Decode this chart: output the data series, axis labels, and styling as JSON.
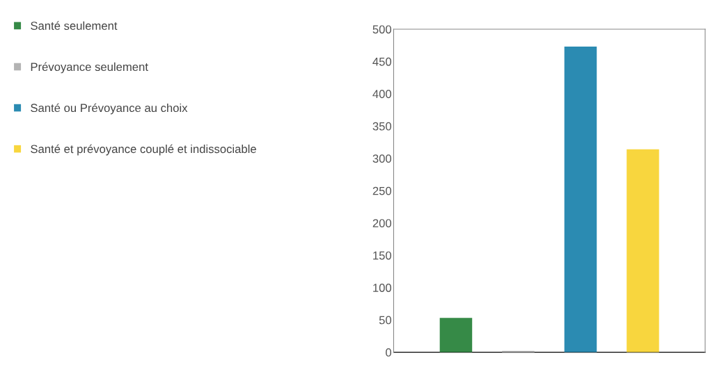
{
  "chart_data": {
    "type": "bar",
    "categories": [
      null,
      null,
      null,
      null
    ],
    "series": [
      {
        "name": "Santé seulement",
        "color": "#368a47",
        "values": [
          53,
          null,
          null,
          null
        ]
      },
      {
        "name": "Prévoyance seulement",
        "color": "#b3b3b3",
        "values": [
          null,
          2,
          null,
          null
        ]
      },
      {
        "name": "Santé ou Prévoyance au choix",
        "color": "#2b8bb2",
        "values": [
          null,
          null,
          473,
          null
        ]
      },
      {
        "name": "Santé et prévoyance couplé et indissociable",
        "color": "#f8d63e",
        "values": [
          null,
          null,
          null,
          314
        ]
      }
    ],
    "ylim": [
      0,
      500
    ],
    "yticks": [
      0,
      50,
      100,
      150,
      200,
      250,
      300,
      350,
      400,
      450,
      500
    ],
    "grid": false,
    "legend": "left"
  }
}
